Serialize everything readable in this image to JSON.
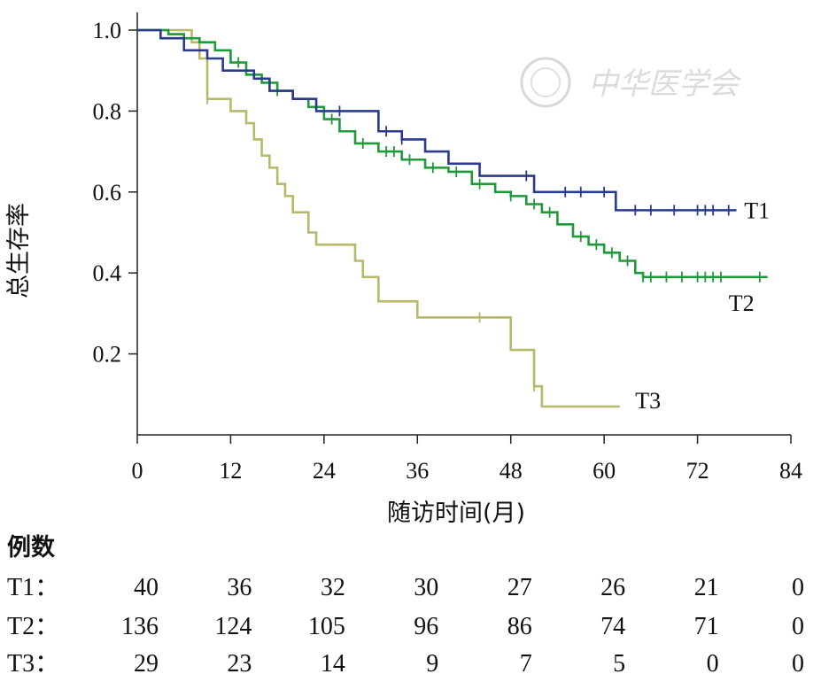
{
  "chart_data": {
    "type": "line",
    "step": true,
    "xlabel": "随访时间(月)",
    "ylabel": "总生存率",
    "xlim": [
      0,
      84
    ],
    "ylim": [
      0,
      1.0
    ],
    "x_ticks": [
      0,
      12,
      24,
      36,
      48,
      60,
      72,
      84
    ],
    "x_tick_labels": [
      "0",
      "12",
      "24",
      "36",
      "48",
      "60",
      "72",
      "84"
    ],
    "y_ticks": [
      0.2,
      0.4,
      0.6,
      0.8,
      1.0
    ],
    "y_tick_labels": [
      "0.2",
      "0.4",
      "0.6",
      "0.8",
      "1.0"
    ],
    "grid": false,
    "series": [
      {
        "name": "T1",
        "color": "#2b3a8a",
        "steps": [
          [
            0,
            1.0
          ],
          [
            3,
            0.98
          ],
          [
            6,
            0.95
          ],
          [
            9,
            0.93
          ],
          [
            11,
            0.9
          ],
          [
            15,
            0.88
          ],
          [
            17,
            0.85
          ],
          [
            20,
            0.83
          ],
          [
            23,
            0.8
          ],
          [
            31,
            0.75
          ],
          [
            34,
            0.73
          ],
          [
            37,
            0.7
          ],
          [
            40,
            0.67
          ],
          [
            44,
            0.64
          ],
          [
            51,
            0.6
          ],
          [
            61.5,
            0.555
          ],
          [
            77,
            0.555
          ]
        ],
        "censor_x": [
          26,
          32,
          34,
          50,
          55,
          57,
          60,
          64,
          66,
          69,
          72,
          73,
          74,
          76
        ]
      },
      {
        "name": "T2",
        "color": "#1f9a3b",
        "steps": [
          [
            0,
            1.0
          ],
          [
            4,
            0.99
          ],
          [
            6,
            0.98
          ],
          [
            8,
            0.97
          ],
          [
            10,
            0.95
          ],
          [
            12,
            0.92
          ],
          [
            14,
            0.89
          ],
          [
            16,
            0.87
          ],
          [
            18,
            0.85
          ],
          [
            20,
            0.83
          ],
          [
            22,
            0.81
          ],
          [
            24,
            0.78
          ],
          [
            26,
            0.75
          ],
          [
            28,
            0.72
          ],
          [
            31,
            0.7
          ],
          [
            34,
            0.68
          ],
          [
            37,
            0.66
          ],
          [
            40,
            0.65
          ],
          [
            43,
            0.62
          ],
          [
            46,
            0.6
          ],
          [
            48,
            0.59
          ],
          [
            50,
            0.57
          ],
          [
            52,
            0.55
          ],
          [
            54,
            0.52
          ],
          [
            56,
            0.49
          ],
          [
            58,
            0.47
          ],
          [
            60,
            0.45
          ],
          [
            62,
            0.43
          ],
          [
            64,
            0.4
          ],
          [
            65,
            0.39
          ],
          [
            81,
            0.39
          ]
        ],
        "censor_x": [
          13,
          18,
          25,
          29,
          32,
          33,
          35,
          38,
          41,
          44,
          48,
          51,
          53,
          57,
          59,
          61,
          63,
          65,
          66,
          68,
          70,
          72,
          73,
          74,
          75,
          80
        ]
      },
      {
        "name": "T3",
        "color": "#b8b86a",
        "steps": [
          [
            0,
            1.0
          ],
          [
            7,
            0.97
          ],
          [
            8,
            0.93
          ],
          [
            9,
            0.83
          ],
          [
            12,
            0.8
          ],
          [
            14,
            0.77
          ],
          [
            15,
            0.73
          ],
          [
            16,
            0.69
          ],
          [
            17,
            0.66
          ],
          [
            18,
            0.62
          ],
          [
            19,
            0.59
          ],
          [
            20,
            0.55
          ],
          [
            22,
            0.5
          ],
          [
            23,
            0.47
          ],
          [
            28,
            0.43
          ],
          [
            29,
            0.39
          ],
          [
            31,
            0.33
          ],
          [
            36,
            0.29
          ],
          [
            48,
            0.21
          ],
          [
            51,
            0.12
          ],
          [
            52,
            0.07
          ],
          [
            62,
            0.07
          ]
        ],
        "censor_x": [
          9,
          44,
          51
        ]
      }
    ],
    "risk_table": {
      "title": "例数",
      "time_points": [
        0,
        12,
        24,
        36,
        48,
        60,
        72,
        84
      ],
      "rows": [
        {
          "label": "T1：",
          "values": [
            "40",
            "36",
            "32",
            "30",
            "27",
            "26",
            "21",
            "0"
          ]
        },
        {
          "label": "T2：",
          "values": [
            "136",
            "124",
            "105",
            "96",
            "86",
            "74",
            "71",
            "0"
          ]
        },
        {
          "label": "T3：",
          "values": [
            "29",
            "23",
            "14",
            "9",
            "7",
            "5",
            "0",
            "0"
          ]
        }
      ]
    }
  },
  "watermark": {
    "text": "中华医学会"
  }
}
